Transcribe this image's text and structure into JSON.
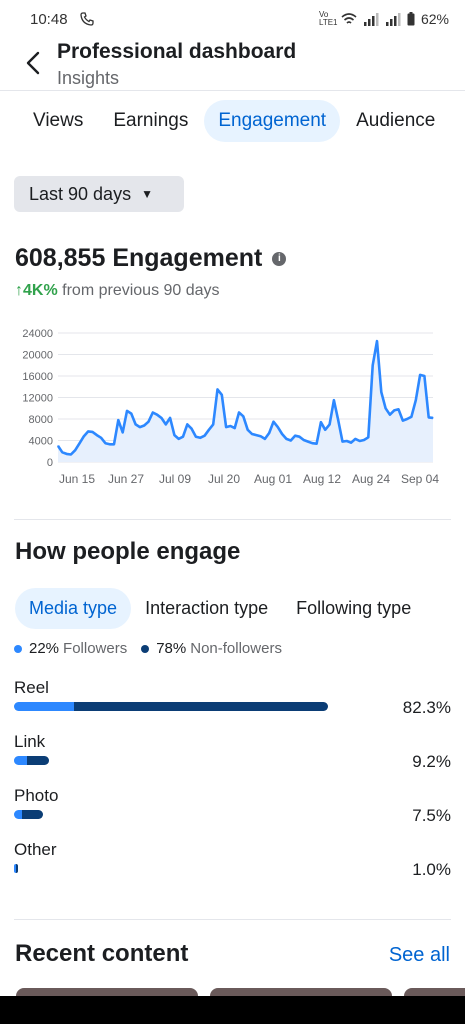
{
  "status_bar": {
    "time": "10:48",
    "network_text": "Vo LTE1",
    "battery": "62%"
  },
  "header": {
    "title": "Professional dashboard",
    "subtitle": "Insights"
  },
  "tabs": [
    {
      "label": "Views",
      "active": false
    },
    {
      "label": "Earnings",
      "active": false
    },
    {
      "label": "Engagement",
      "active": true
    },
    {
      "label": "Audience",
      "active": false
    }
  ],
  "date_range": {
    "label": "Last 90 days"
  },
  "metric": {
    "total": "608,855 Engagement",
    "delta_value": "↑4K%",
    "delta_text": "from previous 90 days"
  },
  "chart_data": {
    "type": "area",
    "xlabel": "",
    "ylabel": "",
    "ylim": [
      0,
      24000
    ],
    "yticks": [
      0,
      4000,
      8000,
      12000,
      16000,
      20000,
      24000
    ],
    "xtick_labels": [
      "Jun 15",
      "Jun 27",
      "Jul 09",
      "Jul 20",
      "Aug 01",
      "Aug 12",
      "Aug 24",
      "Sep 04"
    ],
    "x_range": [
      "Jun 10",
      "Sep 06"
    ],
    "series": [
      {
        "values": [
          3000,
          1800,
          1500,
          1400,
          2200,
          3500,
          4800,
          5700,
          5600,
          5000,
          4500,
          3500,
          3300,
          3300,
          7800,
          5500,
          9500,
          9000,
          7000,
          6500,
          6800,
          7500,
          9200,
          8800,
          8200,
          7000,
          8200,
          5000,
          4300,
          4700,
          7000,
          6200,
          4700,
          4500,
          4900,
          6000,
          7000,
          13500,
          12500,
          6500,
          6700,
          6300,
          9200,
          8500,
          6000,
          5200,
          5000,
          4800,
          4300,
          5400,
          7500,
          6500,
          5200,
          4300,
          4000,
          4900,
          4700,
          4100,
          3800,
          3500,
          3400,
          7400,
          6000,
          7000,
          11500,
          7800,
          3800,
          3900,
          3600,
          4300,
          3900,
          4100,
          4600,
          18000,
          22500,
          13000,
          10000,
          8800,
          9600,
          9800,
          7700,
          8000,
          8400,
          11500,
          16200,
          16000,
          8300,
          8200
        ]
      }
    ],
    "grid": true,
    "color": "#2d88ff"
  },
  "engage": {
    "title": "How people engage",
    "tabs": [
      {
        "label": "Media type",
        "active": true
      },
      {
        "label": "Interaction type",
        "active": false
      },
      {
        "label": "Following type",
        "active": false
      }
    ],
    "legend": {
      "followers_pct": "22%",
      "followers_label": "Followers",
      "nonfollowers_pct": "78%",
      "nonfollowers_label": "Non-followers"
    },
    "rows": [
      {
        "label": "Reel",
        "pct": "82.3%",
        "value": 82.3,
        "followers_share": 0.19
      },
      {
        "label": "Link",
        "pct": "9.2%",
        "value": 9.2,
        "followers_share": 0.38
      },
      {
        "label": "Photo",
        "pct": "7.5%",
        "value": 7.5,
        "followers_share": 0.28
      },
      {
        "label": "Other",
        "pct": "1.0%",
        "value": 1.0,
        "followers_share": 0.4
      }
    ]
  },
  "recent": {
    "title": "Recent content",
    "see_all": "See all"
  }
}
